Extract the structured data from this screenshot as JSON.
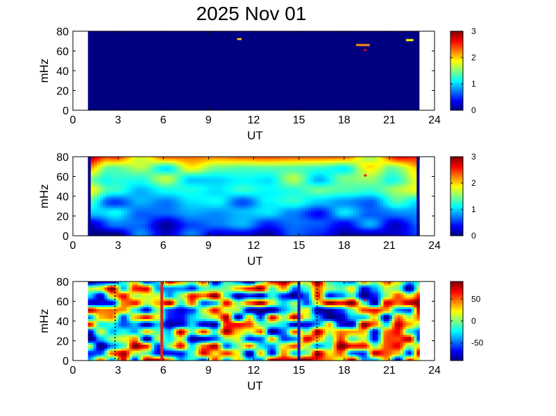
{
  "title": "2025 Nov 01",
  "colors": {
    "background": "#ffffff",
    "axis": "#000000",
    "jet_low": "#00008f",
    "jet_high": "#800000",
    "fill_value": "#7cfc5a",
    "marker_red": "#ff0000",
    "vline_red": "#d8261f",
    "vline_blue": "#1a1acc"
  },
  "chart_data": [
    {
      "type": "heatmap",
      "xlabel": "UT",
      "ylabel": "mHz",
      "xlim": [
        0,
        24
      ],
      "ylim": [
        0,
        80
      ],
      "x_ticks": [
        "0",
        "3",
        "6",
        "9",
        "12",
        "15",
        "18",
        "21",
        "24"
      ],
      "y_ticks": [
        "0",
        "20",
        "40",
        "60",
        "80"
      ],
      "data_range_ut": [
        1.0,
        23.0
      ],
      "colorbar": {
        "min": 0,
        "max": 3,
        "ticks": [
          "0",
          "1",
          "2",
          "3"
        ]
      },
      "background_value": 0,
      "features": [
        {
          "ut_start": 10.9,
          "ut_end": 11.2,
          "mhz": 72,
          "value": 2.1
        },
        {
          "ut_start": 18.8,
          "ut_end": 19.7,
          "mhz": 66,
          "value": 2.2
        },
        {
          "ut_start": 22.1,
          "ut_end": 22.6,
          "mhz": 71,
          "value": 1.9
        }
      ],
      "marker": {
        "ut": 19.4,
        "mhz": 61
      }
    },
    {
      "type": "heatmap",
      "xlabel": "UT",
      "ylabel": "mHz",
      "xlim": [
        0,
        24
      ],
      "ylim": [
        0,
        80
      ],
      "x_ticks": [
        "0",
        "3",
        "6",
        "9",
        "12",
        "15",
        "18",
        "21",
        "24"
      ],
      "y_ticks": [
        "0",
        "20",
        "40",
        "60",
        "80"
      ],
      "data_range_ut": [
        1.0,
        23.0
      ],
      "colorbar": {
        "min": 0,
        "max": 3,
        "ticks": [
          "0",
          "1",
          "2",
          "3"
        ]
      },
      "marker": {
        "ut": 19.4,
        "mhz": 61
      }
    },
    {
      "type": "heatmap",
      "xlabel": "UT",
      "ylabel": "mHz",
      "xlim": [
        0,
        24
      ],
      "ylim": [
        0,
        80
      ],
      "x_ticks": [
        "0",
        "3",
        "6",
        "9",
        "12",
        "15",
        "18",
        "21",
        "24"
      ],
      "y_ticks": [
        "0",
        "20",
        "40",
        "60",
        "80"
      ],
      "data_range_ut": [
        1.0,
        23.0
      ],
      "colorbar": {
        "min": -90,
        "max": 90,
        "ticks": [
          "-50",
          "0",
          "50"
        ],
        "tick_values": [
          -50,
          0,
          50
        ]
      },
      "dotted_lines_ut": [
        2.8,
        16.2
      ],
      "vertical_lines": [
        {
          "ut": 5.9,
          "color": "red"
        },
        {
          "ut": 15.0,
          "color": "blue"
        }
      ],
      "marker": {
        "ut": 19.4,
        "mhz": 61
      }
    }
  ]
}
